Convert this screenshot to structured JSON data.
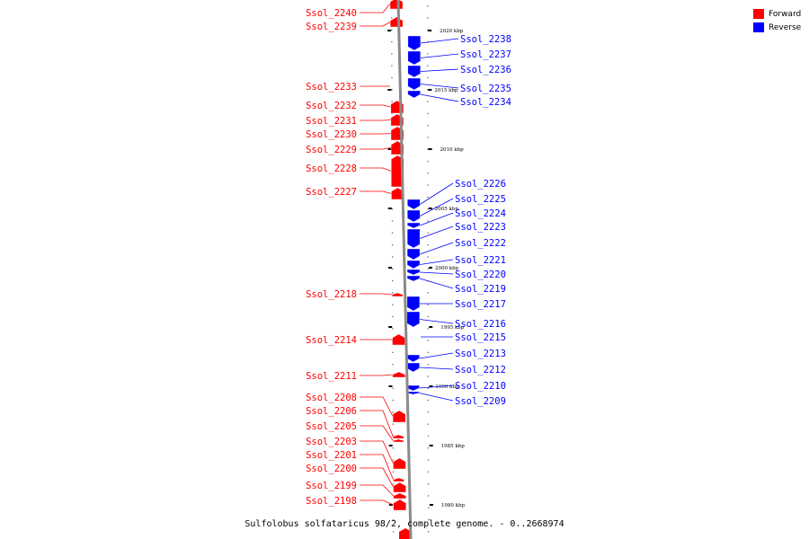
{
  "legend": {
    "forward_label": "Forward",
    "reverse_label": "Reverse",
    "forward_color": "#ff0000",
    "reverse_color": "#0000ff"
  },
  "caption": "Sulfolobus solfataricus 98/2, complete genome. - 0..2668974",
  "scale": {
    "unit": "kbp",
    "major_ticks": [
      {
        "kbp": 2020,
        "label": "2020 kbp"
      },
      {
        "kbp": 2015,
        "label": "2015 kbp"
      },
      {
        "kbp": 2010,
        "label": "2010 kbp"
      },
      {
        "kbp": 2005,
        "label": "2005 kbp"
      },
      {
        "kbp": 2000,
        "label": "2000 kbp"
      },
      {
        "kbp": 1995,
        "label": "1995 kbp"
      },
      {
        "kbp": 1990,
        "label": "1990 kbp"
      },
      {
        "kbp": 1985,
        "label": "1985 kbp"
      },
      {
        "kbp": 1980,
        "label": "1980 kbp"
      }
    ]
  },
  "forward_genes": [
    {
      "name": "Ssol_2240"
    },
    {
      "name": "Ssol_2239"
    },
    {
      "name": "Ssol_2233"
    },
    {
      "name": "Ssol_2232"
    },
    {
      "name": "Ssol_2231"
    },
    {
      "name": "Ssol_2230"
    },
    {
      "name": "Ssol_2229"
    },
    {
      "name": "Ssol_2228"
    },
    {
      "name": "Ssol_2227"
    },
    {
      "name": "Ssol_2218"
    },
    {
      "name": "Ssol_2214"
    },
    {
      "name": "Ssol_2211"
    },
    {
      "name": "Ssol_2208"
    },
    {
      "name": "Ssol_2206"
    },
    {
      "name": "Ssol_2205"
    },
    {
      "name": "Ssol_2203"
    },
    {
      "name": "Ssol_2201"
    },
    {
      "name": "Ssol_2200"
    },
    {
      "name": "Ssol_2199"
    },
    {
      "name": "Ssol_2198"
    }
  ],
  "reverse_genes": [
    {
      "name": "Ssol_2238"
    },
    {
      "name": "Ssol_2237"
    },
    {
      "name": "Ssol_2236"
    },
    {
      "name": "Ssol_2235"
    },
    {
      "name": "Ssol_2234"
    },
    {
      "name": "Ssol_2226"
    },
    {
      "name": "Ssol_2225"
    },
    {
      "name": "Ssol_2224"
    },
    {
      "name": "Ssol_2223"
    },
    {
      "name": "Ssol_2222"
    },
    {
      "name": "Ssol_2221"
    },
    {
      "name": "Ssol_2220"
    },
    {
      "name": "Ssol_2219"
    },
    {
      "name": "Ssol_2217"
    },
    {
      "name": "Ssol_2216"
    },
    {
      "name": "Ssol_2215"
    },
    {
      "name": "Ssol_2213"
    },
    {
      "name": "Ssol_2212"
    },
    {
      "name": "Ssol_2210"
    },
    {
      "name": "Ssol_2209"
    }
  ]
}
